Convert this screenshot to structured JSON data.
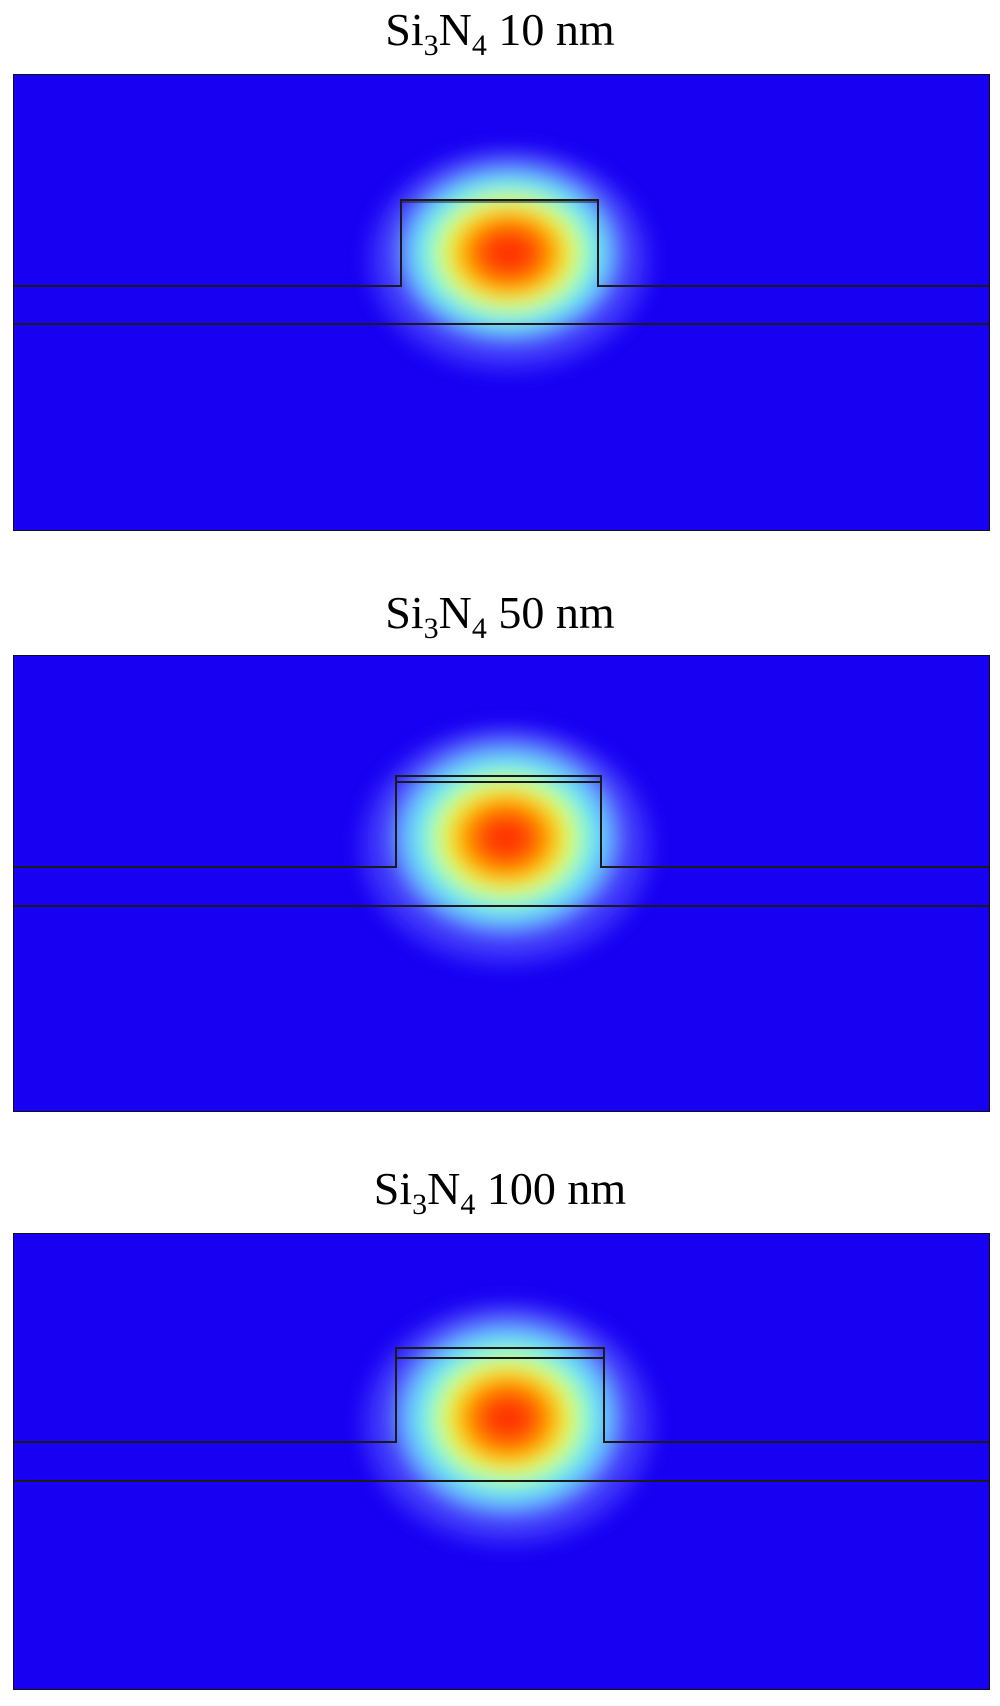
{
  "panels": [
    {
      "title": {
        "base": "Si",
        "sub1": "3",
        "mid": "N",
        "sub2": "4",
        "rest": " 10 nm"
      },
      "coating_nm": 10
    },
    {
      "title": {
        "base": "Si",
        "sub1": "3",
        "mid": "N",
        "sub2": "4",
        "rest": " 50 nm"
      },
      "coating_nm": 50
    },
    {
      "title": {
        "base": "Si",
        "sub1": "3",
        "mid": "N",
        "sub2": "4",
        "rest": " 100 nm"
      },
      "coating_nm": 100
    }
  ],
  "colors": {
    "background_field": "#1800f2",
    "outline": "#1a1a1a",
    "colormap": [
      "#1800f2",
      "#3f8cff",
      "#7fffff",
      "#d8ff4a",
      "#ffd400",
      "#ff6a00",
      "#ff2200"
    ]
  }
}
